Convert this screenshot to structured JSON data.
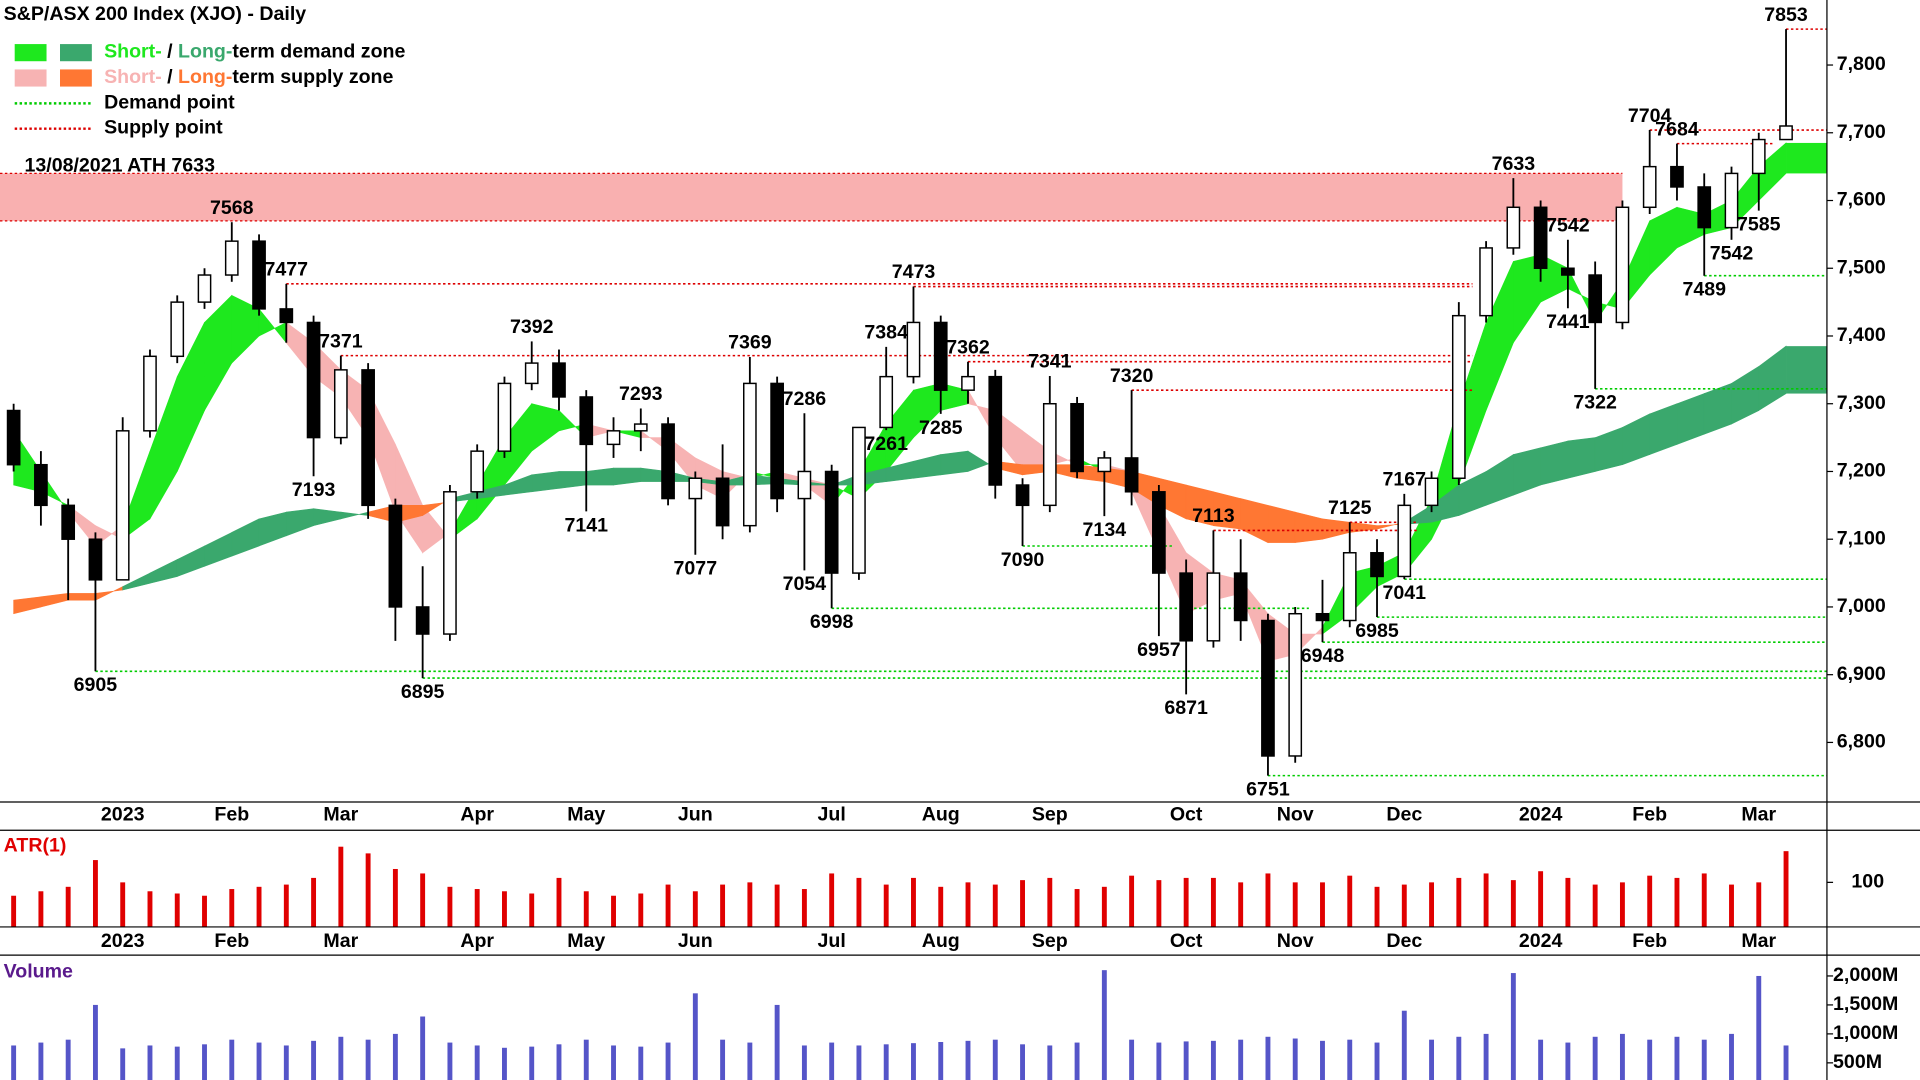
{
  "chart_data": [
    {
      "type": "candlestick",
      "title": "S&P/ASX 200 Index (XJO) - Daily",
      "categories": [
        null,
        null,
        null,
        null,
        "2023",
        null,
        null,
        null,
        "Feb",
        null,
        null,
        null,
        "Mar",
        null,
        null,
        null,
        null,
        "Apr",
        null,
        null,
        null,
        "May",
        null,
        null,
        null,
        "Jun",
        null,
        null,
        null,
        null,
        "Jul",
        null,
        null,
        null,
        "Aug",
        null,
        null,
        null,
        "Sep",
        null,
        null,
        null,
        null,
        "Oct",
        null,
        null,
        null,
        "Nov",
        null,
        null,
        null,
        "Dec",
        null,
        null,
        null,
        null,
        "2024",
        null,
        null,
        null,
        "Feb",
        null,
        null,
        null,
        "Mar",
        null,
        null
      ],
      "open": [
        7290,
        7210,
        7150,
        7100,
        7040,
        7260,
        7370,
        7450,
        7490,
        7540,
        7440,
        7420,
        7250,
        7350,
        7150,
        7000,
        6960,
        7170,
        7230,
        7330,
        7360,
        7310,
        7240,
        7260,
        7270,
        7160,
        7190,
        7120,
        7330,
        7160,
        7200,
        7050,
        7265,
        7340,
        7420,
        7320,
        7340,
        7180,
        7150,
        7300,
        7200,
        7220,
        7170,
        7050,
        6950,
        7050,
        6980,
        6780,
        6990,
        6980,
        7080,
        7045,
        7150,
        7190,
        7430,
        7530,
        7590,
        7500,
        7490,
        7420,
        7590,
        7650,
        7620,
        7560,
        7640,
        7690,
        null
      ],
      "high": [
        7300,
        7230,
        7160,
        7110,
        7280,
        7380,
        7460,
        7500,
        7568,
        7550,
        7477,
        7430,
        7371,
        7360,
        7160,
        7060,
        7180,
        7240,
        7340,
        7392,
        7380,
        7320,
        7280,
        7293,
        7280,
        7200,
        7240,
        7369,
        7340,
        7286,
        7210,
        7260,
        7384,
        7473,
        7430,
        7362,
        7350,
        7190,
        7341,
        7310,
        7230,
        7320,
        7180,
        7070,
        7113,
        7100,
        6990,
        7000,
        7040,
        7125,
        7100,
        7167,
        7200,
        7450,
        7540,
        7633,
        7600,
        7542,
        7510,
        7600,
        7704,
        7684,
        7640,
        7650,
        7700,
        7853,
        null
      ],
      "low": [
        7200,
        7120,
        7010,
        6905,
        7040,
        7250,
        7360,
        7440,
        7480,
        7430,
        7390,
        7193,
        7240,
        7130,
        6950,
        6895,
        6950,
        7160,
        7220,
        7320,
        7290,
        7141,
        7220,
        7230,
        7150,
        7077,
        7100,
        7110,
        7140,
        7054,
        6998,
        7040,
        7261,
        7330,
        7285,
        7300,
        7160,
        7090,
        7140,
        7190,
        7134,
        7150,
        6957,
        6871,
        6940,
        6950,
        6751,
        6770,
        6948,
        6970,
        6985,
        7041,
        7140,
        7180,
        7420,
        7520,
        7480,
        7441,
        7322,
        7410,
        7580,
        7600,
        7489,
        7542,
        7585,
        7690,
        null
      ],
      "close": [
        7210,
        7150,
        7100,
        7040,
        7260,
        7370,
        7450,
        7490,
        7540,
        7440,
        7420,
        7250,
        7350,
        7150,
        7000,
        6960,
        7170,
        7230,
        7330,
        7360,
        7310,
        7240,
        7260,
        7270,
        7160,
        7190,
        7120,
        7330,
        7160,
        7200,
        7050,
        7265,
        7340,
        7420,
        7320,
        7340,
        7180,
        7150,
        7300,
        7200,
        7220,
        7170,
        7050,
        6950,
        7050,
        6980,
        6780,
        6990,
        6980,
        7080,
        7045,
        7150,
        7190,
        7430,
        7530,
        7590,
        7500,
        7490,
        7420,
        7590,
        7650,
        7620,
        7560,
        7640,
        7690,
        7710,
        null
      ],
      "ribbons": [
        {
          "fast": [
            7260,
            7200,
            7140,
            7090,
            7120,
            7230,
            7340,
            7420,
            7460,
            7440,
            7390,
            7340,
            7310,
            7250,
            7140,
            7080,
            7110,
            7180,
            7250,
            7300,
            7290,
            7250,
            7260,
            7260,
            7230,
            7180,
            7160,
            7200,
            7190,
            7180,
            7150,
            7200,
            7270,
            7320,
            7330,
            7320,
            7250,
            7200,
            7210,
            7220,
            7200,
            7170,
            7080,
            6990,
            7010,
            7020,
            6920,
            6930,
            6970,
            7050,
            7060,
            7080,
            7160,
            7300,
            7420,
            7510,
            7520,
            7500,
            7420,
            7480,
            7570,
            7590,
            7580,
            7600,
            7650,
            7685,
            null
          ],
          "slow": [
            7180,
            7170,
            7150,
            7120,
            7100,
            7130,
            7200,
            7290,
            7360,
            7400,
            7420,
            7390,
            7350,
            7320,
            7240,
            7150,
            7100,
            7130,
            7180,
            7230,
            7260,
            7270,
            7260,
            7250,
            7250,
            7220,
            7200,
            7190,
            7200,
            7190,
            7180,
            7160,
            7200,
            7250,
            7290,
            7300,
            7290,
            7260,
            7230,
            7210,
            7210,
            7200,
            7150,
            7080,
            7050,
            7040,
            6990,
            6960,
            6960,
            6990,
            7030,
            7050,
            7100,
            7180,
            7290,
            7390,
            7450,
            7470,
            7450,
            7440,
            7490,
            7530,
            7550,
            7560,
            7600,
            7640,
            null
          ],
          "demand_color": "#1ee81e",
          "supply_color": "#f7b3b3"
        },
        {
          "fast": [
            6990,
            7000,
            7010,
            7010,
            7030,
            7050,
            7070,
            7090,
            7110,
            7130,
            7140,
            7145,
            7140,
            7135,
            7125,
            7135,
            7160,
            7170,
            7180,
            7195,
            7200,
            7200,
            7205,
            7205,
            7200,
            7190,
            7185,
            7195,
            7190,
            7185,
            7180,
            7195,
            7205,
            7215,
            7225,
            7230,
            7205,
            7195,
            7200,
            7190,
            7185,
            7175,
            7150,
            7130,
            7120,
            7115,
            7095,
            7095,
            7100,
            7110,
            7115,
            7125,
            7150,
            7180,
            7200,
            7225,
            7235,
            7245,
            7250,
            7265,
            7285,
            7300,
            7315,
            7330,
            7355,
            7385,
            null
          ],
          "slow": [
            7010,
            7015,
            7020,
            7020,
            7025,
            7035,
            7045,
            7060,
            7075,
            7090,
            7105,
            7120,
            7130,
            7140,
            7150,
            7150,
            7155,
            7160,
            7165,
            7170,
            7175,
            7180,
            7180,
            7185,
            7185,
            7185,
            7180,
            7180,
            7182,
            7180,
            7180,
            7180,
            7185,
            7190,
            7195,
            7200,
            7215,
            7210,
            7210,
            7210,
            7205,
            7200,
            7190,
            7180,
            7170,
            7160,
            7150,
            7140,
            7130,
            7125,
            7120,
            7122,
            7125,
            7135,
            7150,
            7165,
            7180,
            7190,
            7200,
            7210,
            7225,
            7240,
            7255,
            7270,
            7290,
            7315,
            null
          ],
          "demand_color": "#3aa86d",
          "supply_color": "#ff7733"
        }
      ],
      "ath_zone": {
        "label": "13/08/2021 ATH 7633",
        "low": 7570,
        "high": 7640,
        "to": 59,
        "color": "#f9b0b0"
      },
      "supply_points": [
        {
          "value": 7853,
          "from": 65,
          "to": 66
        },
        {
          "value": 7704,
          "from": 60,
          "to": 66
        },
        {
          "value": 7684,
          "from": 61,
          "to": 64
        },
        {
          "value": 7477,
          "from": 10,
          "to": 53
        },
        {
          "value": 7473,
          "from": 33,
          "to": 53
        },
        {
          "value": 7371,
          "from": 12,
          "to": 53
        },
        {
          "value": 7362,
          "from": 35,
          "to": 53
        },
        {
          "value": 7320,
          "from": 41,
          "to": 53
        },
        {
          "value": 7125,
          "from": 49,
          "to": 51
        },
        {
          "value": 7113,
          "from": 44,
          "to": 51
        }
      ],
      "demand_points": [
        {
          "value": 7489,
          "from": 62,
          "to": 66
        },
        {
          "value": 7322,
          "from": 58,
          "to": 66
        },
        {
          "value": 7041,
          "from": 51,
          "to": 66
        },
        {
          "value": 6985,
          "from": 50,
          "to": 66
        },
        {
          "value": 6948,
          "from": 48,
          "to": 66
        },
        {
          "value": 6998,
          "from": 30,
          "to": 47
        },
        {
          "value": 6905,
          "from": 3,
          "to": 66
        },
        {
          "value": 6895,
          "from": 15,
          "to": 66
        },
        {
          "value": 6751,
          "from": 46,
          "to": 66
        },
        {
          "value": 7090,
          "from": 37,
          "to": 42
        }
      ],
      "supply_point_color": "#dd0000",
      "demand_point_color": "#00cc00",
      "annotations": [
        {
          "index": 3,
          "value": 6905
        },
        {
          "index": 8,
          "value": 7568
        },
        {
          "index": 10,
          "value": 7477
        },
        {
          "index": 11,
          "value": 7193
        },
        {
          "index": 12,
          "value": 7371
        },
        {
          "index": 15,
          "value": 6895
        },
        {
          "index": 19,
          "value": 7392
        },
        {
          "index": 21,
          "value": 7141
        },
        {
          "index": 23,
          "value": 7293
        },
        {
          "index": 25,
          "value": 7077
        },
        {
          "index": 27,
          "value": 7369
        },
        {
          "index": 29,
          "value": 7286
        },
        {
          "index": 29,
          "value": 7054
        },
        {
          "index": 30,
          "value": 6998
        },
        {
          "index": 32,
          "value": 7384
        },
        {
          "index": 32,
          "value": 7261
        },
        {
          "index": 33,
          "value": 7473
        },
        {
          "index": 34,
          "value": 7285
        },
        {
          "index": 35,
          "value": 7362
        },
        {
          "index": 37,
          "value": 7090
        },
        {
          "index": 38,
          "value": 7341
        },
        {
          "index": 40,
          "value": 7134
        },
        {
          "index": 41,
          "value": 7320
        },
        {
          "index": 42,
          "value": 6957
        },
        {
          "index": 43,
          "value": 6871
        },
        {
          "index": 44,
          "value": 7113
        },
        {
          "index": 46,
          "value": 6751
        },
        {
          "index": 48,
          "value": 6948
        },
        {
          "index": 49,
          "value": 7125
        },
        {
          "index": 50,
          "value": 6985
        },
        {
          "index": 51,
          "value": 7167
        },
        {
          "index": 51,
          "value": 7041
        },
        {
          "index": 55,
          "value": 7633
        },
        {
          "index": 57,
          "value": 7542
        },
        {
          "index": 57,
          "value": 7441
        },
        {
          "index": 58,
          "value": 7322
        },
        {
          "index": 60,
          "value": 7704
        },
        {
          "index": 61,
          "value": 7684
        },
        {
          "index": 62,
          "value": 7489
        },
        {
          "index": 63,
          "value": 7542
        },
        {
          "index": 64,
          "value": 7585
        },
        {
          "index": 65,
          "value": 7853
        }
      ],
      "legend": [
        {
          "text": [
            "Short-",
            " / ",
            "Long-",
            "term demand zone"
          ]
        },
        {
          "text": [
            "Short-",
            " / ",
            "Long-",
            "term supply zone"
          ]
        },
        {
          "text": [
            "Demand point"
          ]
        },
        {
          "text": [
            "Supply point"
          ]
        }
      ],
      "ylim": [
        6712,
        7896
      ],
      "yticks": [
        {
          "value": 6800,
          "label": "6,800"
        },
        {
          "value": 6900,
          "label": "6,900"
        },
        {
          "value": 7000,
          "label": "7,000"
        },
        {
          "value": 7100,
          "label": "7,100"
        },
        {
          "value": 7200,
          "label": "7,200"
        },
        {
          "value": 7300,
          "label": "7,300"
        },
        {
          "value": 7400,
          "label": "7,400"
        },
        {
          "value": 7500,
          "label": "7,500"
        },
        {
          "value": 7600,
          "label": "7,600"
        },
        {
          "value": 7700,
          "label": "7,700"
        },
        {
          "value": 7800,
          "label": "7,800"
        }
      ]
    },
    {
      "type": "bar",
      "title": "ATR(1)",
      "color": "#e00000",
      "categories": [
        null,
        null,
        null,
        null,
        "2023",
        null,
        null,
        null,
        "Feb",
        null,
        null,
        null,
        "Mar",
        null,
        null,
        null,
        null,
        "Apr",
        null,
        null,
        null,
        "May",
        null,
        null,
        null,
        "Jun",
        null,
        null,
        null,
        null,
        "Jul",
        null,
        null,
        null,
        "Aug",
        null,
        null,
        null,
        "Sep",
        null,
        null,
        null,
        null,
        "Oct",
        null,
        null,
        null,
        "Nov",
        null,
        null,
        null,
        "Dec",
        null,
        null,
        null,
        null,
        "2024",
        null,
        null,
        null,
        "Feb",
        null,
        null,
        null,
        "Mar",
        null,
        null
      ],
      "values": [
        70,
        80,
        90,
        150,
        100,
        80,
        75,
        70,
        85,
        90,
        95,
        110,
        180,
        165,
        130,
        120,
        90,
        85,
        80,
        75,
        110,
        80,
        70,
        75,
        95,
        80,
        95,
        100,
        95,
        85,
        120,
        110,
        95,
        110,
        90,
        100,
        95,
        105,
        110,
        85,
        90,
        115,
        105,
        110,
        110,
        100,
        120,
        100,
        100,
        115,
        90,
        95,
        100,
        110,
        120,
        105,
        125,
        110,
        95,
        100,
        115,
        110,
        120,
        95,
        100,
        170,
        null
      ],
      "ylim": [
        0,
        217
      ],
      "yticks": [
        100
      ]
    },
    {
      "type": "bar",
      "title": "Volume",
      "color": "#5555c8",
      "values": [
        800,
        850,
        900,
        1500,
        750,
        800,
        780,
        820,
        900,
        850,
        800,
        880,
        950,
        900,
        1000,
        1300,
        850,
        800,
        760,
        780,
        820,
        900,
        800,
        780,
        850,
        1700,
        900,
        850,
        1500,
        800,
        850,
        800,
        820,
        840,
        860,
        880,
        900,
        820,
        800,
        850,
        2100,
        900,
        850,
        870,
        880,
        900,
        950,
        920,
        880,
        900,
        850,
        1400,
        900,
        950,
        1000,
        2050,
        900,
        850,
        950,
        1000,
        900,
        950,
        900,
        1000,
        2000,
        800,
        null
      ],
      "ylim": [
        204,
        2360
      ],
      "yticks": [
        {
          "value": 500,
          "label": "500M"
        },
        {
          "value": 1000,
          "label": "1,000M"
        },
        {
          "value": 1500,
          "label": "1,500M"
        },
        {
          "value": 2000,
          "label": "2,000M"
        }
      ]
    }
  ]
}
